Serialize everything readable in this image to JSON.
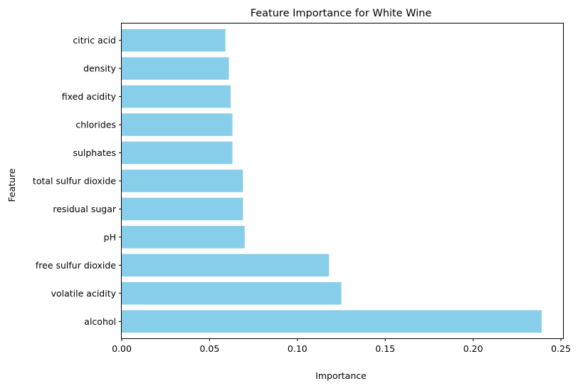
{
  "chart_data": {
    "type": "bar",
    "orientation": "horizontal",
    "title": "Feature Importance for White Wine",
    "xlabel": "Importance",
    "ylabel": "Feature",
    "categories": [
      "alcohol",
      "volatile acidity",
      "free sulfur dioxide",
      "pH",
      "residual sugar",
      "total sulfur dioxide",
      "sulphates",
      "chlorides",
      "fixed acidity",
      "density",
      "citric acid"
    ],
    "values": [
      0.239,
      0.125,
      0.118,
      0.07,
      0.069,
      0.069,
      0.063,
      0.063,
      0.062,
      0.061,
      0.059
    ],
    "xlim": [
      0,
      0.2512
    ],
    "xticks": [
      "0.00",
      "0.05",
      "0.10",
      "0.15",
      "0.20",
      "0.25"
    ],
    "grid": false,
    "bar_color": "#87ceeb"
  }
}
